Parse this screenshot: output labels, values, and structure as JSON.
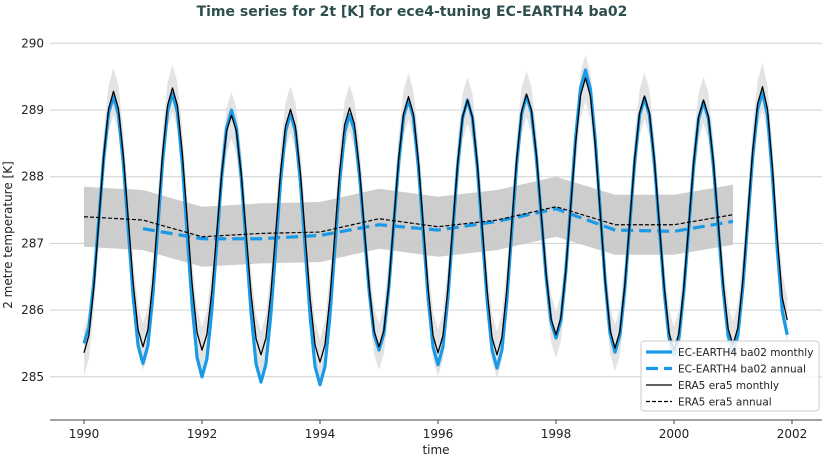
{
  "chart_data": {
    "type": "line",
    "title": "Time series for 2t [K] for ece4-tuning EC-EARTH4 ba02",
    "xlabel": "time",
    "ylabel": "2 metre temperature [K]",
    "xlim": [
      1989.4,
      2002.5
    ],
    "ylim": [
      284.35,
      290.2
    ],
    "xticks": [
      1990,
      1992,
      1994,
      1996,
      1998,
      2000,
      2002
    ],
    "yticks": [
      285,
      286,
      287,
      288,
      289,
      290
    ],
    "grid": "horizontal",
    "legend_position": "bottom-right",
    "colors": {
      "ec": "#1a9ae6",
      "era": "#000000",
      "band": "#d0d0d0",
      "title": "#2f4f4f"
    },
    "series": [
      {
        "name": "EC-EARTH4 ba02 monthly",
        "style": "solid-thick",
        "color": "#1a9ae6",
        "note_points": "January minima and July maxima",
        "points": [
          [
            1990.0,
            285.5
          ],
          [
            1990.5,
            289.2
          ],
          [
            1991.0,
            285.2
          ],
          [
            1991.5,
            289.25
          ],
          [
            1992.0,
            285.0
          ],
          [
            1992.5,
            289.0
          ],
          [
            1993.0,
            284.92
          ],
          [
            1993.5,
            288.95
          ],
          [
            1994.0,
            284.88
          ],
          [
            1994.5,
            288.93
          ],
          [
            1995.0,
            285.4
          ],
          [
            1995.5,
            289.15
          ],
          [
            1996.0,
            285.18
          ],
          [
            1996.5,
            289.15
          ],
          [
            1997.0,
            285.13
          ],
          [
            1997.5,
            289.21
          ],
          [
            1998.0,
            285.58
          ],
          [
            1998.5,
            289.6
          ],
          [
            1999.0,
            285.37
          ],
          [
            1999.5,
            289.18
          ],
          [
            2000.0,
            285.33
          ],
          [
            2000.5,
            289.12
          ],
          [
            2001.0,
            285.37
          ],
          [
            2001.5,
            289.27
          ],
          [
            2001.92,
            285.63
          ]
        ]
      },
      {
        "name": "EC-EARTH4 ba02 annual",
        "style": "dashed-thick",
        "color": "#1a9ae6",
        "points": [
          [
            1991,
            287.22
          ],
          [
            1992,
            287.07
          ],
          [
            1993,
            287.07
          ],
          [
            1994,
            287.12
          ],
          [
            1995,
            287.28
          ],
          [
            1996,
            287.2
          ],
          [
            1997,
            287.33
          ],
          [
            1998,
            287.52
          ],
          [
            1999,
            287.2
          ],
          [
            2000,
            287.18
          ],
          [
            2001,
            287.33
          ]
        ]
      },
      {
        "name": "ERA5 era5 monthly",
        "style": "solid-thin",
        "color": "#000000",
        "spread": 0.35,
        "points": [
          [
            1990.0,
            285.36
          ],
          [
            1990.5,
            289.28
          ],
          [
            1991.0,
            285.45
          ],
          [
            1991.5,
            289.33
          ],
          [
            1992.0,
            285.4
          ],
          [
            1992.5,
            288.92
          ],
          [
            1993.0,
            285.33
          ],
          [
            1993.5,
            289.01
          ],
          [
            1994.0,
            285.22
          ],
          [
            1994.5,
            289.03
          ],
          [
            1995.0,
            285.45
          ],
          [
            1995.5,
            289.2
          ],
          [
            1996.0,
            285.36
          ],
          [
            1996.5,
            289.15
          ],
          [
            1997.0,
            285.33
          ],
          [
            1997.5,
            289.24
          ],
          [
            1998.0,
            285.63
          ],
          [
            1998.5,
            289.48
          ],
          [
            1999.0,
            285.43
          ],
          [
            1999.5,
            289.21
          ],
          [
            2000.0,
            285.4
          ],
          [
            2000.5,
            289.15
          ],
          [
            2001.0,
            285.48
          ],
          [
            2001.5,
            289.35
          ],
          [
            2001.92,
            285.85
          ]
        ]
      },
      {
        "name": "ERA5 era5 annual",
        "style": "dashed-thin",
        "color": "#000000",
        "spread": 0.45,
        "points": [
          [
            1990,
            287.4
          ],
          [
            1991,
            287.35
          ],
          [
            1992,
            287.1
          ],
          [
            1993,
            287.15
          ],
          [
            1994,
            287.17
          ],
          [
            1995,
            287.37
          ],
          [
            1996,
            287.25
          ],
          [
            1997,
            287.35
          ],
          [
            1998,
            287.55
          ],
          [
            1999,
            287.28
          ],
          [
            2000,
            287.28
          ],
          [
            2001,
            287.43
          ]
        ]
      }
    ]
  }
}
